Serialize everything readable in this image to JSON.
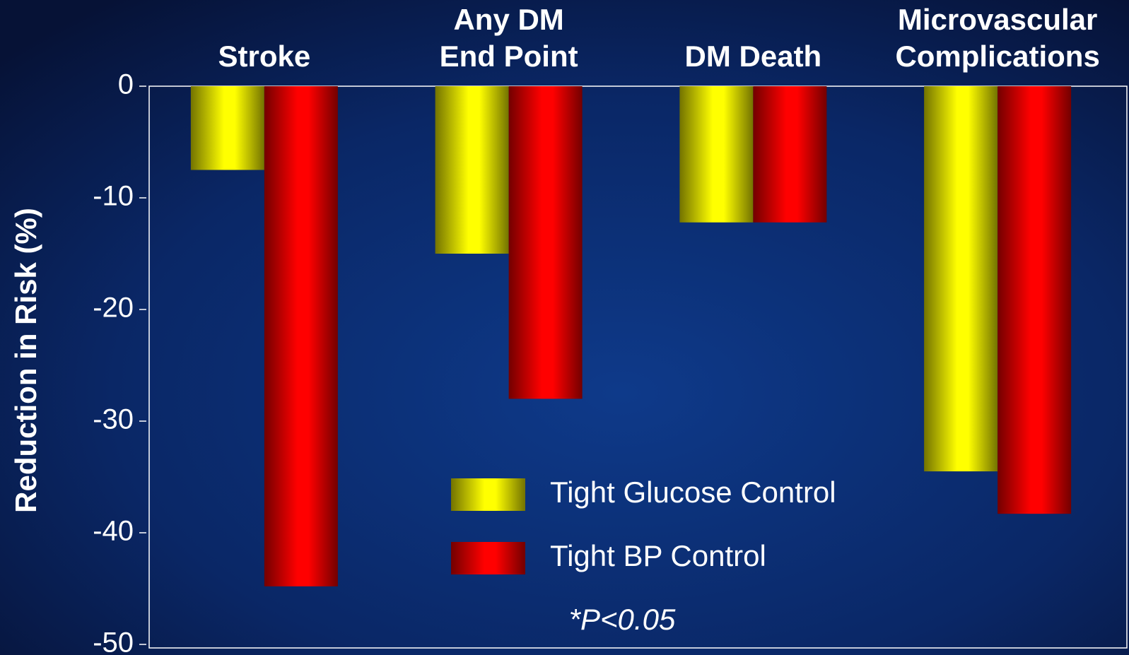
{
  "chart_data": {
    "type": "bar",
    "y_axis_label": "Reduction in Risk (%)",
    "categories": [
      "Stroke",
      "Any DM\nEnd Point",
      "DM Death",
      "Microvascular\nComplications"
    ],
    "series": [
      {
        "name": "Tight Glucose Control",
        "color": "#ffff00",
        "values": [
          -7.5,
          -15,
          -12.2,
          -34.5
        ]
      },
      {
        "name": "Tight BP Control",
        "color": "#ff0000",
        "values": [
          -44.8,
          -28,
          -12.2,
          -38.3
        ]
      }
    ],
    "ylim": [
      -50,
      0
    ],
    "yticks": [
      0,
      -10,
      -20,
      -30,
      -40,
      -50
    ],
    "annotation": "*P<0.05"
  }
}
